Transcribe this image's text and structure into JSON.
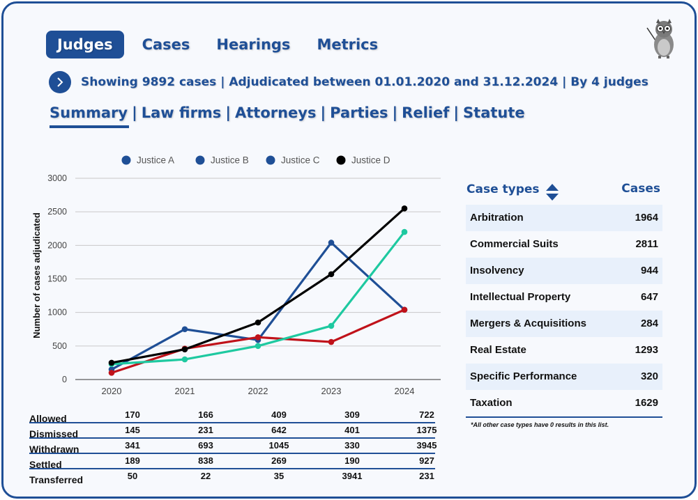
{
  "top_tabs": [
    {
      "label": "Judges",
      "active": true
    },
    {
      "label": "Cases",
      "active": false
    },
    {
      "label": "Hearings",
      "active": false
    },
    {
      "label": "Metrics",
      "active": false
    }
  ],
  "info": {
    "text": "Showing 9892 cases | Adjudicated between 01.01.2020 and 31.12.2024 | By 4 judges"
  },
  "sub_nav": [
    {
      "label": "Summary",
      "active": true
    },
    {
      "label": "Law firms",
      "active": false
    },
    {
      "label": "Attorneys",
      "active": false
    },
    {
      "label": "Parties",
      "active": false
    },
    {
      "label": "Relief",
      "active": false
    },
    {
      "label": "Statute",
      "active": false
    }
  ],
  "colors": {
    "brand": "#1f4f96",
    "justice_a": "#1f4f96",
    "justice_b": "#1f4f96",
    "justice_c": "#1f4f96",
    "justice_d": "#000000",
    "line_red": "#c0121a",
    "line_teal": "#1ec9a0"
  },
  "chart_data": {
    "type": "line",
    "title": "",
    "xlabel": "",
    "ylabel": "Number of cases adjudicated",
    "ylim": [
      0,
      3000
    ],
    "yticks": [
      "0",
      "500",
      "1000",
      "1500",
      "2000",
      "2500",
      "3000"
    ],
    "categories": [
      "2020",
      "2021",
      "2022",
      "2023",
      "2024"
    ],
    "legend": [
      {
        "label": "Justice A",
        "color": "#1f4f96"
      },
      {
        "label": "Justice B",
        "color": "#1f4f96"
      },
      {
        "label": "Justice C",
        "color": "#1f4f96"
      },
      {
        "label": "Justice D",
        "color": "#000000"
      }
    ],
    "legend_position": "top",
    "grid": true,
    "series": [
      {
        "color": "#1f4f96",
        "values": [
          150,
          750,
          590,
          2040,
          1040
        ]
      },
      {
        "color": "#c0121a",
        "values": [
          100,
          460,
          630,
          560,
          1040
        ]
      },
      {
        "color": "#1ec9a0",
        "values": [
          230,
          300,
          500,
          800,
          2200
        ]
      },
      {
        "color": "#000000",
        "values": [
          250,
          450,
          850,
          1570,
          2550
        ]
      }
    ]
  },
  "stats": {
    "years": [
      "2020",
      "2021",
      "2022",
      "2023",
      "2024"
    ],
    "rows": [
      {
        "label": "Allowed",
        "values": [
          "170",
          "166",
          "409",
          "309",
          "722"
        ]
      },
      {
        "label": "Dismissed",
        "values": [
          "145",
          "231",
          "642",
          "401",
          "1375"
        ]
      },
      {
        "label": "Withdrawn",
        "values": [
          "341",
          "693",
          "1045",
          "330",
          "3945"
        ]
      },
      {
        "label": "Settled",
        "values": [
          "189",
          "838",
          "269",
          "190",
          "927"
        ]
      },
      {
        "label": "Transferred",
        "values": [
          "50",
          "22",
          "35",
          "3941",
          "231"
        ]
      }
    ]
  },
  "case_types": {
    "title": "Case types",
    "cases_header": "Cases",
    "rows": [
      {
        "name": "Arbitration",
        "value": "1964"
      },
      {
        "name": "Commercial Suits",
        "value": "2811"
      },
      {
        "name": "Insolvency",
        "value": "944"
      },
      {
        "name": "Intellectual Property",
        "value": "647"
      },
      {
        "name": "Mergers & Acquisitions",
        "value": "284"
      },
      {
        "name": "Real Estate",
        "value": "1293"
      },
      {
        "name": "Specific Performance",
        "value": "320"
      },
      {
        "name": "Taxation",
        "value": "1629"
      }
    ],
    "note": "*All other case types have 0 results in this list."
  }
}
